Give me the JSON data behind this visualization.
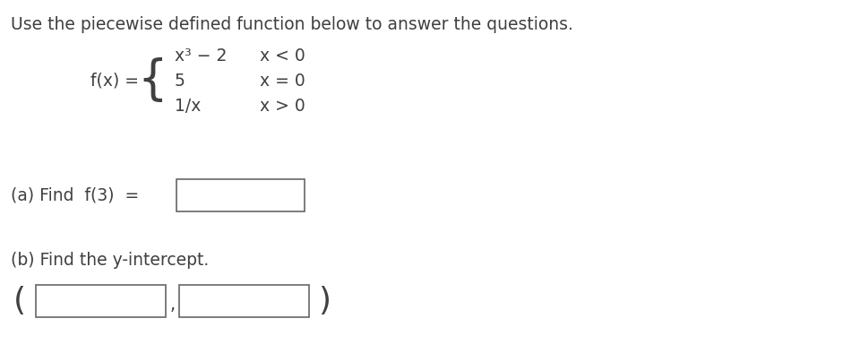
{
  "title": "Use the piecewise defined function below to answer the questions.",
  "background_color": "#ffffff",
  "text_color": "#404040",
  "title_fontsize": 13.5,
  "fontsize_main": 13.5,
  "fontsize_expr": 13.5,
  "fontsize_brace": 38,
  "font_family": "DejaVu Sans",
  "fx_label": "f(x) =",
  "piece1_expr": "x³ − 2",
  "piece1_cond": "x < 0",
  "piece2_expr": "5",
  "piece2_cond": "x = 0",
  "piece3_expr": "1/x",
  "piece3_cond": "x > 0",
  "part_a_label": "(a) Find  f(3)  =",
  "part_b_label": "(b) Find the y-intercept."
}
